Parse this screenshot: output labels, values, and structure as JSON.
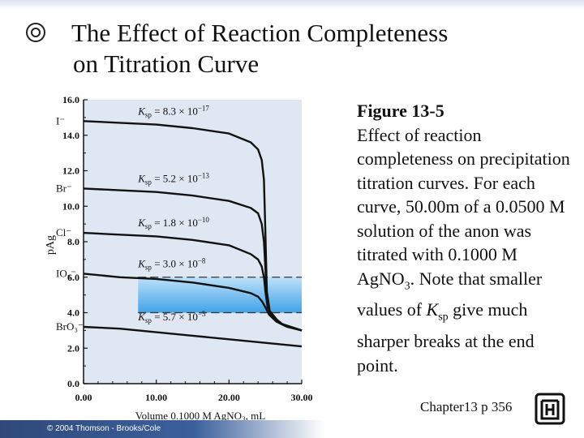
{
  "slide": {
    "title_line1": "The Effect of Reaction Completeness",
    "title_line2": "on  Titration Curve",
    "caption_heading": "Figure 13-5",
    "caption_text": "Effect of reaction completeness on precipitation titration curves. For each curve, 50.00m of a 0.0500 M solution of the anon was titrated with 0.1000 M",
    "caption_formula_base": "Ag",
    "caption_formula_main": "NO",
    "caption_formula_sub": "3",
    "caption_text2": ". Note that smaller values of ",
    "caption_k": "K",
    "caption_k_sub": "sp",
    "caption_text3": " give much sharper breaks at the end point.",
    "footer_chapter": "Chapter13 p 356",
    "copyright": "© 2004 Thomson - Brooks/Cole"
  },
  "colors": {
    "curve": "#111111",
    "plot_bg": "#dfe7f2",
    "band": "#55b4ee",
    "axis": "#111111"
  },
  "chart_data": {
    "type": "line",
    "xlabel": "Volume 0.1000 M AgNO3, mL",
    "ylabel": "pAg",
    "xlim": [
      0,
      30
    ],
    "ylim": [
      0,
      16
    ],
    "x_ticks": [
      "0.00",
      "10.00",
      "20.00",
      "30.00"
    ],
    "y_ticks": [
      "0.0",
      "2.0",
      "4.0",
      "6.0",
      "8.0",
      "10.0",
      "12.0",
      "14.0",
      "16.0"
    ],
    "endpoint_volume": 25,
    "shaded_band": {
      "x_from": 7.5,
      "x_to": 30,
      "y_from": 4.0,
      "y_to": 6.0
    },
    "series": [
      {
        "name": "I⁻",
        "ksp": "K_sp = 8.3 × 10^-17",
        "ksp_base": "= 8.3 × 10",
        "ksp_exp": "−17",
        "points": [
          [
            0,
            14.8
          ],
          [
            5,
            14.7
          ],
          [
            10,
            14.6
          ],
          [
            15,
            14.4
          ],
          [
            20,
            14.1
          ],
          [
            23,
            13.6
          ],
          [
            24,
            13.2
          ],
          [
            24.5,
            12.6
          ],
          [
            24.8,
            11.5
          ],
          [
            25,
            8.5
          ],
          [
            25.2,
            5.2
          ],
          [
            25.6,
            4.1
          ],
          [
            27,
            3.4
          ],
          [
            30,
            3.0
          ]
        ]
      },
      {
        "name": "Br⁻",
        "ksp": "K_sp = 5.2 × 10^-13",
        "ksp_base": "= 5.2 × 10",
        "ksp_exp": "−13",
        "points": [
          [
            0,
            11.0
          ],
          [
            5,
            10.9
          ],
          [
            10,
            10.8
          ],
          [
            15,
            10.6
          ],
          [
            20,
            10.3
          ],
          [
            23,
            9.9
          ],
          [
            24,
            9.6
          ],
          [
            24.5,
            9.0
          ],
          [
            24.8,
            8.0
          ],
          [
            25,
            6.5
          ],
          [
            25.2,
            4.8
          ],
          [
            25.6,
            4.0
          ],
          [
            27,
            3.4
          ],
          [
            30,
            3.0
          ]
        ]
      },
      {
        "name": "Cl⁻",
        "ksp": "K_sp = 1.8 × 10^-10",
        "ksp_base": "= 1.8 × 10",
        "ksp_exp": "−10",
        "points": [
          [
            0,
            8.5
          ],
          [
            5,
            8.4
          ],
          [
            10,
            8.3
          ],
          [
            15,
            8.1
          ],
          [
            20,
            7.8
          ],
          [
            23,
            7.3
          ],
          [
            24,
            7.0
          ],
          [
            24.5,
            6.6
          ],
          [
            24.8,
            6.0
          ],
          [
            25,
            5.2
          ],
          [
            25.3,
            4.3
          ],
          [
            26,
            3.8
          ],
          [
            27.5,
            3.3
          ],
          [
            30,
            3.0
          ]
        ]
      },
      {
        "name": "IO₃⁻",
        "ksp": "K_sp = 3.0 × 10^-8",
        "ksp_base": "= 3.0 × 10",
        "ksp_exp": "−8",
        "points": [
          [
            0,
            6.2
          ],
          [
            5,
            6.0
          ],
          [
            10,
            5.9
          ],
          [
            15,
            5.7
          ],
          [
            20,
            5.4
          ],
          [
            23,
            5.1
          ],
          [
            24,
            4.9
          ],
          [
            24.6,
            4.6
          ],
          [
            25,
            4.3
          ],
          [
            25.5,
            3.9
          ],
          [
            26.5,
            3.5
          ],
          [
            28,
            3.2
          ],
          [
            30,
            3.0
          ]
        ]
      },
      {
        "name": "BrO₃⁻",
        "ksp": "K_sp = 5.7 × 10^-5",
        "ksp_base": "= 5.7 × 10",
        "ksp_exp": "−5",
        "points": [
          [
            0,
            3.2
          ],
          [
            5,
            3.1
          ],
          [
            10,
            2.9
          ],
          [
            15,
            2.7
          ],
          [
            20,
            2.5
          ],
          [
            25,
            2.3
          ],
          [
            30,
            2.1
          ]
        ]
      }
    ],
    "curve_labels": [
      "I⁻",
      "Br⁻",
      "Cl⁻",
      "IO₃⁻",
      "BrO₃⁻"
    ]
  }
}
